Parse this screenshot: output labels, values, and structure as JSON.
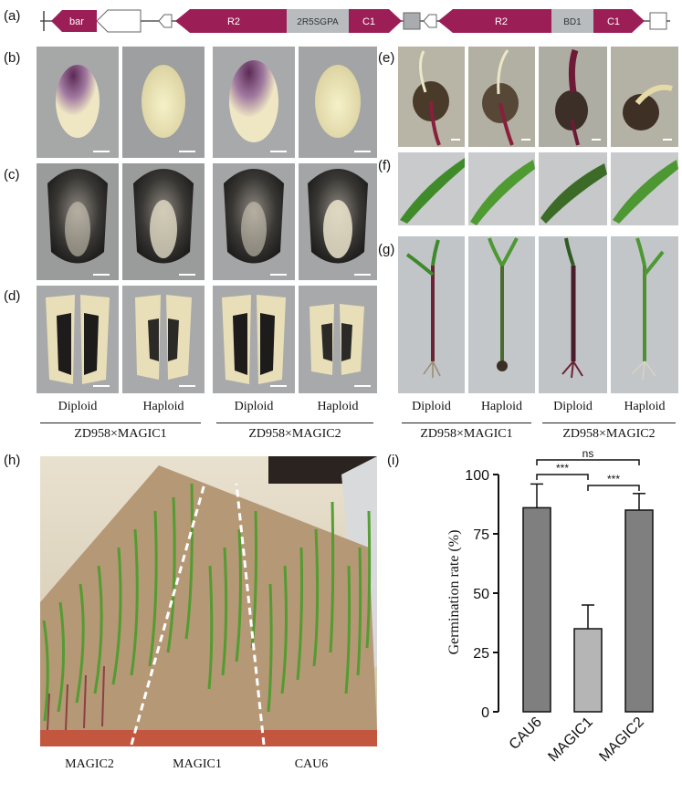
{
  "panel_labels": {
    "a": "(a)",
    "b": "(b)",
    "c": "(c)",
    "d": "(d)",
    "e": "(e)",
    "f": "(f)",
    "g": "(g)",
    "h": "(h)",
    "i": "(i)"
  },
  "construct": {
    "bar": "bar",
    "r2_left": "R2",
    "mid_left": "2R5SGPA",
    "c1_left": "C1",
    "r2_right": "R2",
    "mid_right": "BD1",
    "c1_right": "C1"
  },
  "colors": {
    "magenta": "#9c1e56",
    "gray_box": "#b9bcbf",
    "bar_dark": "#7f7f7f",
    "bar_light": "#b5b5b5"
  },
  "left_grid": {
    "col_labels": [
      "Diploid",
      "Haploid",
      "Diploid",
      "Haploid"
    ],
    "groups": [
      "ZD958×MAGIC1",
      "ZD958×MAGIC2"
    ]
  },
  "right_grid": {
    "col_labels": [
      "Diploid",
      "Haploid",
      "Diploid",
      "Haploid"
    ],
    "groups": [
      "ZD958×MAGIC1",
      "ZD958×MAGIC2"
    ]
  },
  "panel_h": {
    "labels": [
      "MAGIC2",
      "MAGIC1",
      "CAU6"
    ]
  },
  "chart_data": {
    "type": "bar",
    "categories": [
      "CAU6",
      "MAGIC1",
      "MAGIC2"
    ],
    "values": [
      86,
      35,
      85
    ],
    "errors": [
      10,
      10,
      7
    ],
    "ylabel": "Germination rate (%)",
    "ylim": [
      0,
      100
    ],
    "yticks": [
      0,
      25,
      50,
      75,
      100
    ],
    "significance": [
      {
        "pair": [
          "CAU6",
          "MAGIC1"
        ],
        "label": "***"
      },
      {
        "pair": [
          "MAGIC1",
          "MAGIC2"
        ],
        "label": "***"
      },
      {
        "pair": [
          "CAU6",
          "MAGIC2"
        ],
        "label": "ns"
      }
    ],
    "bar_colors": [
      "#7f7f7f",
      "#b5b5b5",
      "#7f7f7f"
    ]
  }
}
